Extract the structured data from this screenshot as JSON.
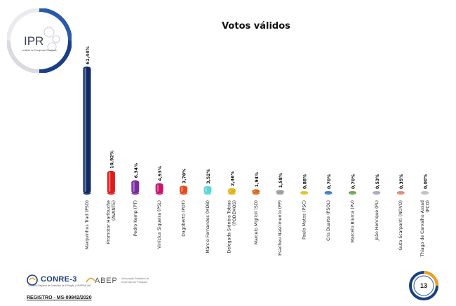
{
  "logo": {
    "text": "IPR",
    "subtitle": "Instituto de Pesquisas Resultado"
  },
  "chart_data": {
    "type": "bar",
    "title": "Votos válidos",
    "categories": [
      "Marquinhos Trad (PSD)",
      "Promotor Harfouche (AVANTE)",
      "Pedro Kemp (PT)",
      "Vinícius Siqueira (PSL)",
      "Dagoberto (PDT)",
      "Márcio Fernandes (MDB)",
      "Delegada Sidnéia Tobias (PODEMOS)",
      "Marcelo Miglioli (SD)",
      "Esacheu Nascimento (PP)",
      "Paulo Matos (PSC)",
      "Cris Duarte (PSOL)",
      "Marcelo Bluma (PV)",
      "João Henrique (PL)",
      "Guto Scarpanti (NOVO)",
      "Thiago de Carvalho Assad (PCO)"
    ],
    "category_lines": [
      [
        "Marquinhos Trad (PSD)"
      ],
      [
        "Promotor Harfouche",
        "(AVANTE)"
      ],
      [
        "Pedro Kemp (PT)"
      ],
      [
        "Vinícius Siqueira (PSL)"
      ],
      [
        "Dagoberto (PDT)"
      ],
      [
        "Márcio Fernandes (MDB)"
      ],
      [
        "Delegada Sidnéia Tobias",
        "(PODEMOS)"
      ],
      [
        "Marcelo Miglioli (SD)"
      ],
      [
        "Esacheu Nascimento (PP)"
      ],
      [
        "Paulo Matos (PSC)"
      ],
      [
        "Cris Duarte (PSOL)"
      ],
      [
        "Marcelo Bluma (PV)"
      ],
      [
        "João Henrique (PL)"
      ],
      [
        "Guto Scarpanti (NOVO)"
      ],
      [
        "Thiago de Carvalho Assad",
        "(PCO)"
      ]
    ],
    "values": [
      61.44,
      10.92,
      6.34,
      4.93,
      3.7,
      3.52,
      2.46,
      1.94,
      1.58,
      0.88,
      0.7,
      0.7,
      0.53,
      0.35,
      0.0
    ],
    "value_labels": [
      "61,44%",
      "10,92%",
      "6,34%",
      "4,93%",
      "3,70%",
      "3,52%",
      "2,46%",
      "1,94%",
      "1,58%",
      "0,88%",
      "0,70%",
      "0,70%",
      "0,53%",
      "0,35%",
      "0,00%"
    ],
    "colors": [
      "#0f2a66",
      "#e01b1b",
      "#7a2c9e",
      "#c8146c",
      "#e8481c",
      "#5ad6d8",
      "#e2b311",
      "#d8691f",
      "#9a9a9a",
      "#e6c21c",
      "#3d7fc4",
      "#6aa84f",
      "#a8a8b8",
      "#e08a7a",
      "#c0c0c0"
    ],
    "ylim": [
      0,
      65
    ],
    "grid": false,
    "xlabel": "",
    "ylabel": ""
  },
  "footer": {
    "conre_name": "CONRE-3",
    "conre_subtitle": "Conselho Regional de Estatística da 3ª Região | SP/PR/MT/MS",
    "abep_name": "ABEP",
    "abep_subtitle": "Associação Brasileira de Empresas de Pesquisa",
    "registro": "REGISTRO - MS-09842/2020",
    "page_number": "13"
  }
}
